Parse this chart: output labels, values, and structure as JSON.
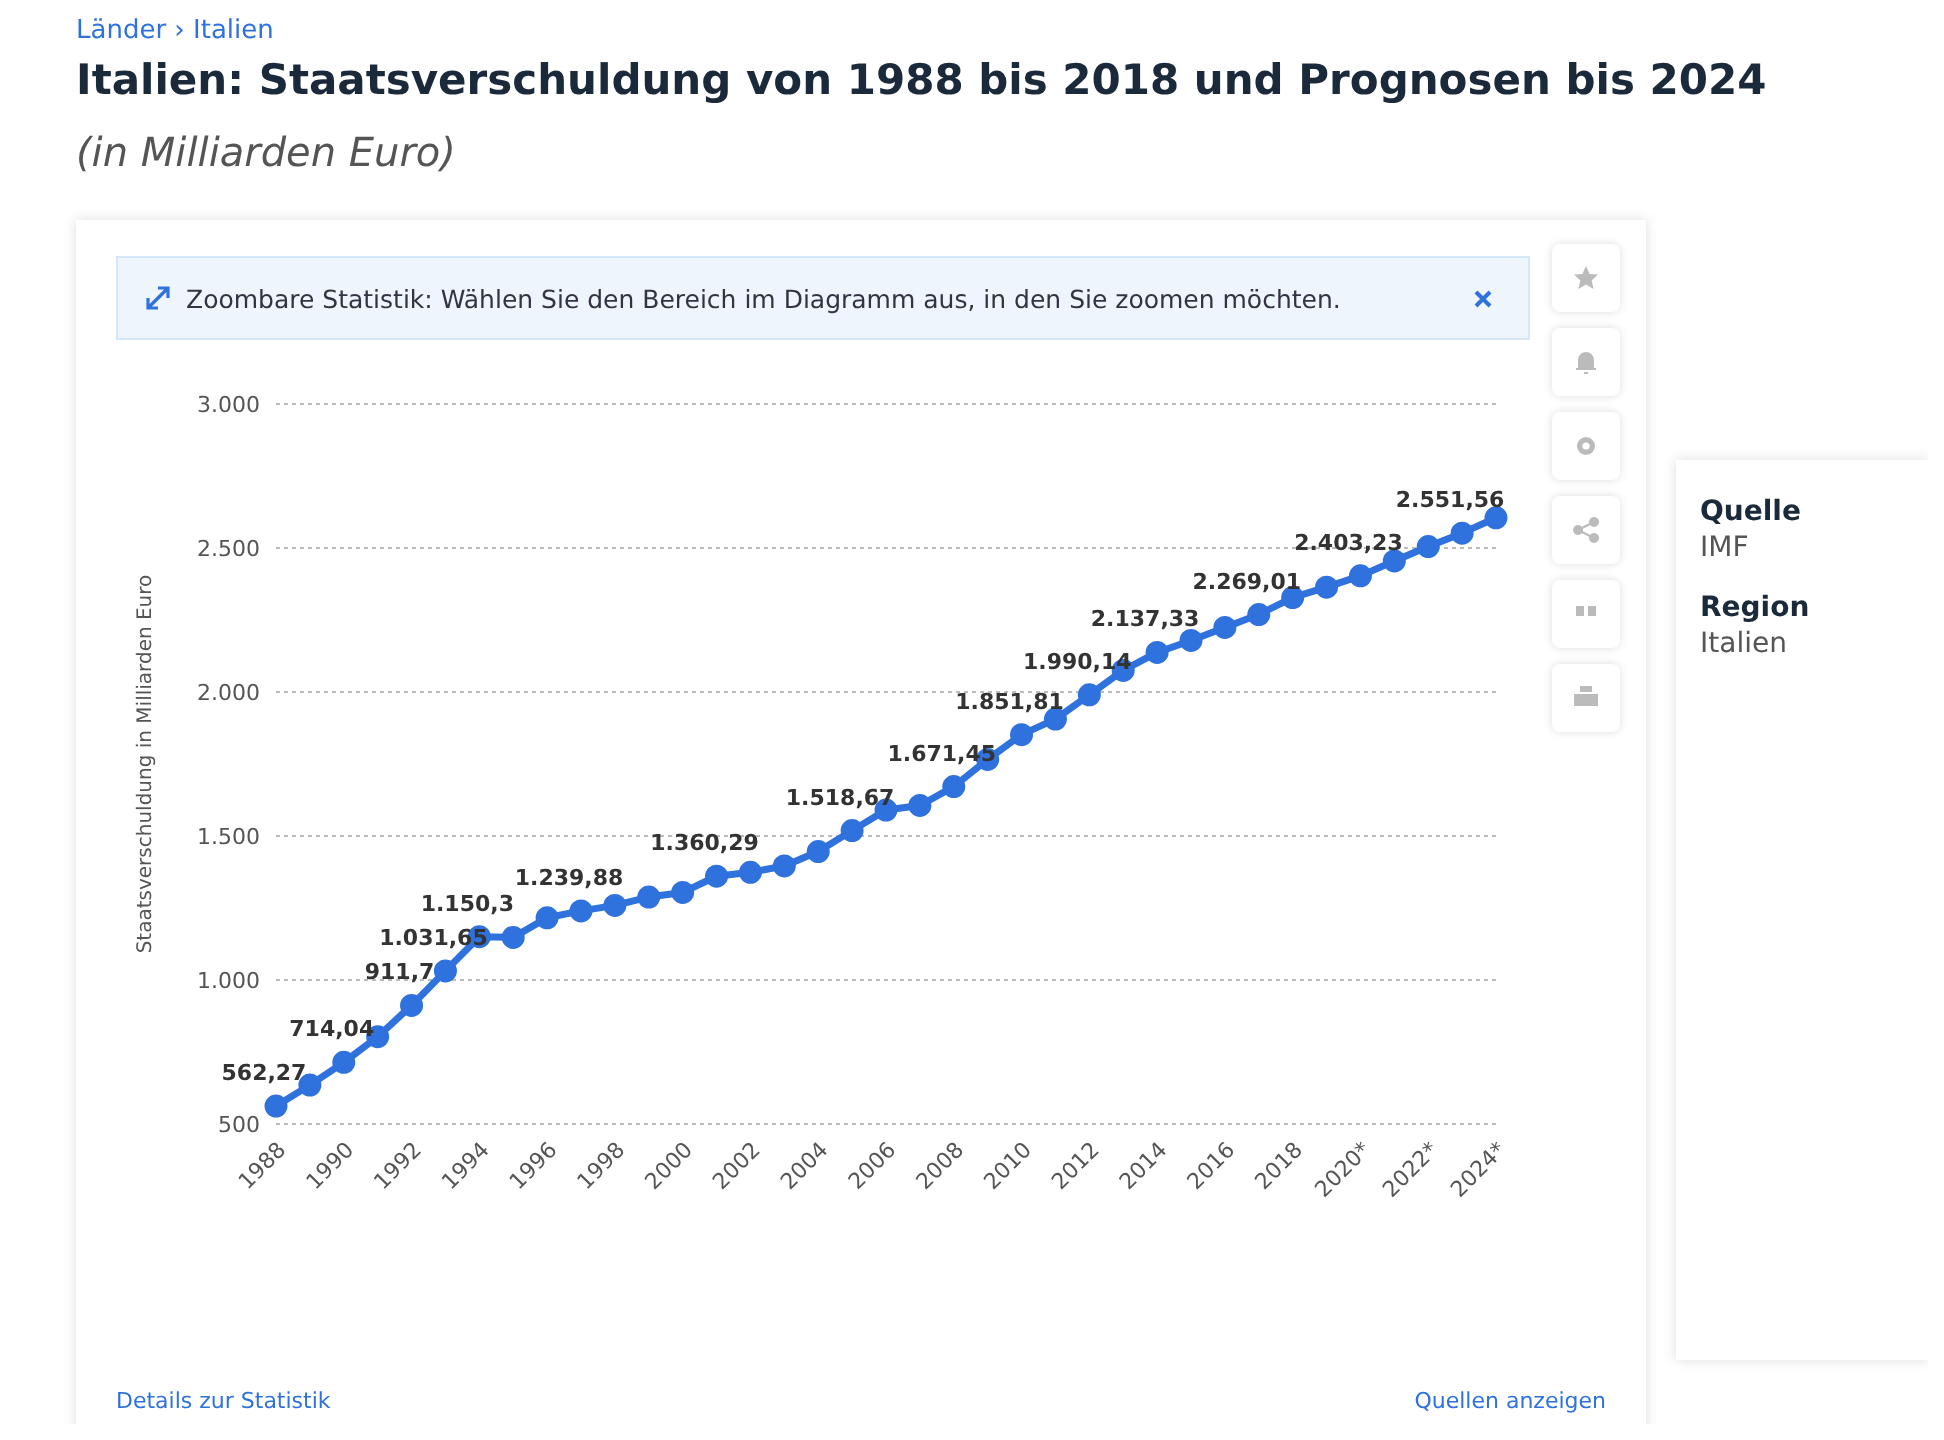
{
  "chart_data": {
    "type": "line",
    "title": "Italien: Staatsverschuldung von 1988 bis 2018 und Prognosen bis 2024",
    "subtitle": "(in Milliarden Euro)",
    "ylabel": "Staatsverschuldung in Milliarden Euro",
    "annotations": [
      "Länder › Italien",
      "Zoombare Statistik: Wählen Sie den Bereich im Diagramm aus, in den Sie zoomen möchten.",
      "Details zur Statistik",
      "Quellen anzeigen",
      "Quelle",
      "IMF",
      "Region",
      "Italien"
    ],
    "categories": [
      "1988",
      null,
      "1990",
      null,
      "1992",
      null,
      "1994",
      null,
      "1996",
      null,
      "1998",
      null,
      "2000",
      null,
      "2002",
      null,
      "2004",
      null,
      "2006",
      null,
      "2008",
      null,
      "2010",
      null,
      "2012",
      null,
      "2014",
      null,
      "2016",
      null,
      "2018",
      null,
      "2020*",
      null,
      "2022*",
      null,
      "2024*"
    ],
    "series": [
      {
        "color": "#2f72de",
        "values": [
          562.27,
          635,
          714.04,
          803,
          911.7,
          1031.65,
          1150.3,
          1148,
          1216,
          1239.88,
          1259,
          1288,
          1304,
          1360.29,
          1374,
          1396,
          1446,
          1518.67,
          1590,
          1606,
          1671.45,
          1766,
          1851.81,
          1906,
          1990.14,
          2075,
          2137.33,
          2179,
          2224,
          2269.01,
          2328,
          2364,
          2403.23,
          2455,
          2505,
          2551.56,
          2605
        ],
        "value_labels": [
          "562,27",
          null,
          "714,04",
          null,
          "911,7",
          "1.031,65",
          "1.150,3",
          null,
          null,
          "1.239,88",
          null,
          null,
          null,
          "1.360,29",
          null,
          null,
          null,
          "1.518,67",
          null,
          null,
          "1.671,45",
          null,
          "1.851,81",
          null,
          "1.990,14",
          null,
          "2.137,33",
          null,
          null,
          "2.269,01",
          null,
          null,
          "2.403,23",
          null,
          null,
          "2.551,56",
          null
        ]
      }
    ],
    "ylim": [
      500,
      3000
    ],
    "yticks": [
      {
        "value": 500,
        "label": "500"
      },
      {
        "value": 1000,
        "label": "1.000"
      },
      {
        "value": 1500,
        "label": "1.500"
      },
      {
        "value": 2000,
        "label": "2.000"
      },
      {
        "value": 2500,
        "label": "2.500"
      },
      {
        "value": 3000,
        "label": "3.000"
      }
    ],
    "grid": "y",
    "marker": "circle",
    "line_style": "solid"
  }
}
